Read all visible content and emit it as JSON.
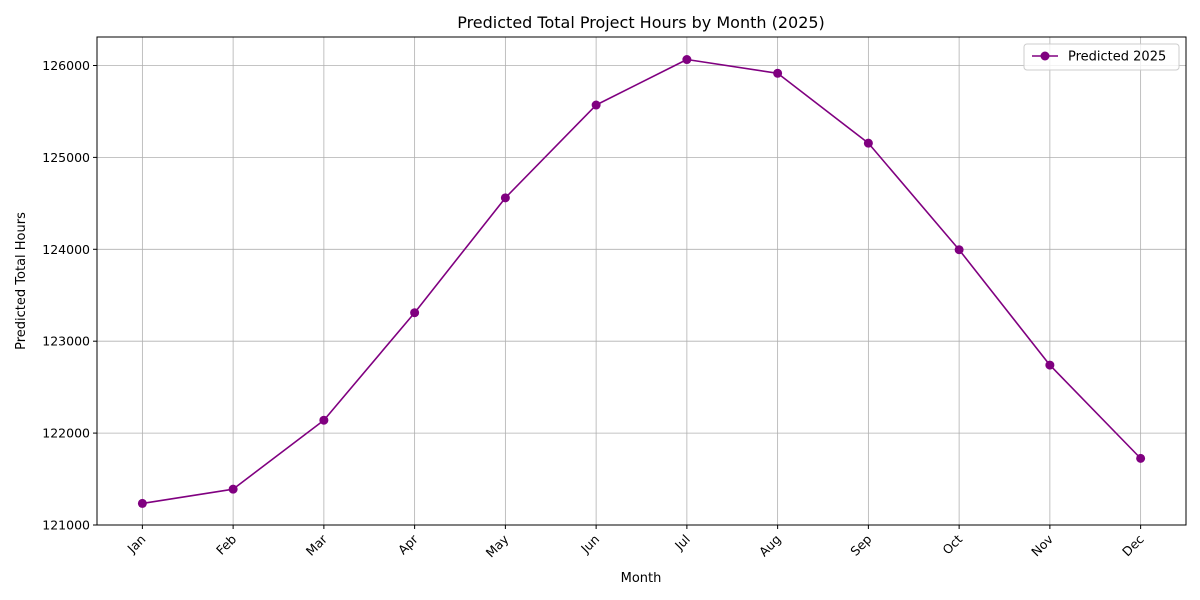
{
  "chart_data": {
    "type": "line",
    "title": "Predicted Total Project Hours by Month (2025)",
    "xlabel": "Month",
    "ylabel": "Predicted Total Hours",
    "categories": [
      "Jan",
      "Feb",
      "Mar",
      "Apr",
      "May",
      "Jun",
      "Jul",
      "Aug",
      "Sep",
      "Oct",
      "Nov",
      "Dec"
    ],
    "series": [
      {
        "name": "Predicted 2025",
        "color": "#800080",
        "marker": "circle",
        "values": [
          121235,
          121390,
          122140,
          123310,
          124560,
          125570,
          126065,
          125915,
          125155,
          123995,
          122740,
          121725
        ]
      }
    ],
    "ylim": [
      121000,
      126310
    ],
    "yticks": [
      "121000",
      "122000",
      "123000",
      "124000",
      "125000",
      "126000"
    ],
    "grid": true,
    "legend_position": "top-right",
    "xtick_rotation": 45
  }
}
